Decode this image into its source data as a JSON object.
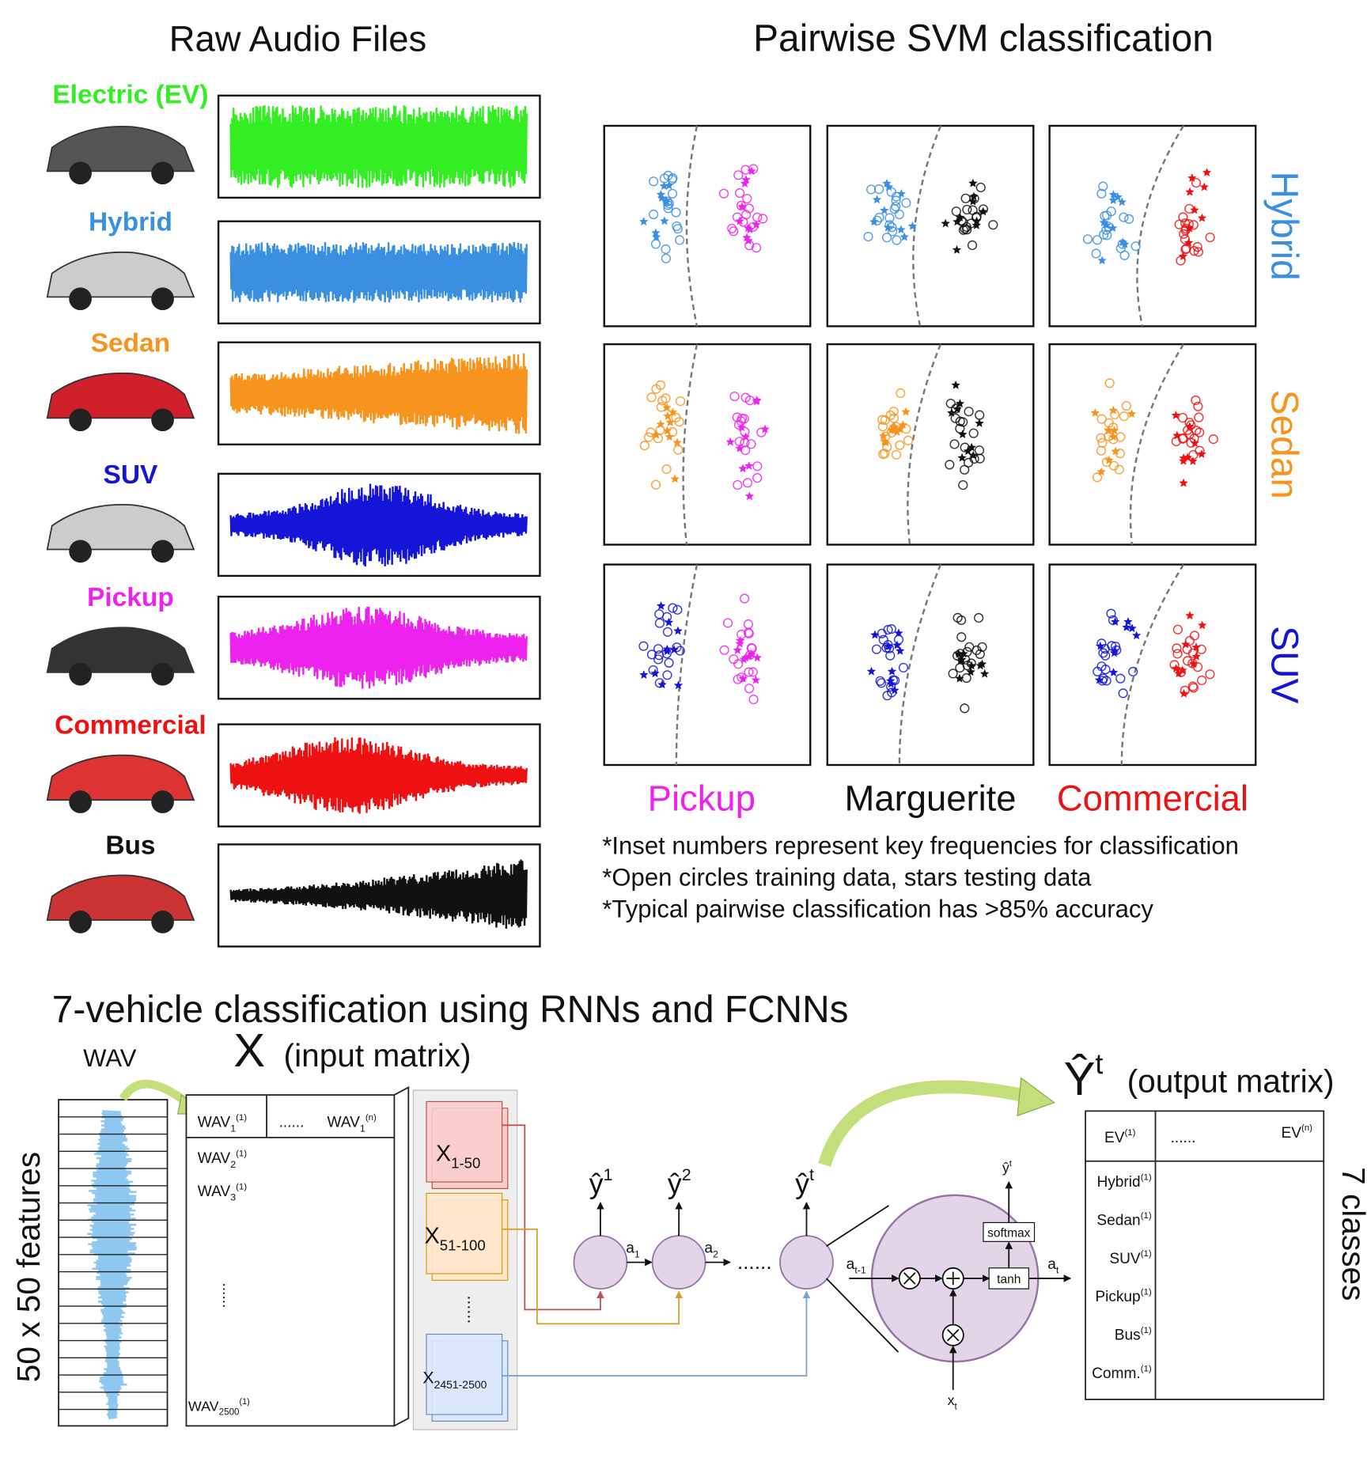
{
  "raw_audio": {
    "title": "Raw Audio Files",
    "vehicles": [
      {
        "label": "Electric (EV)",
        "color": "#33ee22"
      },
      {
        "label": "Hybrid",
        "color": "#3a8fe0"
      },
      {
        "label": "Sedan",
        "color": "#f7941d"
      },
      {
        "label": "SUV",
        "color": "#1515d8"
      },
      {
        "label": "Pickup",
        "color": "#ee22ee"
      },
      {
        "label": "Commercial",
        "color": "#ee1111"
      },
      {
        "label": "Bus",
        "color": "#111111"
      }
    ]
  },
  "svm": {
    "title": "Pairwise SVM classification",
    "rows": [
      {
        "label": "Hybrid",
        "color": "#3a8fe0"
      },
      {
        "label": "Sedan",
        "color": "#f7941d"
      },
      {
        "label": "SUV",
        "color": "#1515d8"
      }
    ],
    "columns": [
      {
        "label": "Pickup",
        "color": "#ee22ee"
      },
      {
        "label": "Marguerite",
        "color": "#111111"
      },
      {
        "label": "Commercial",
        "color": "#ee1111"
      }
    ],
    "notes": [
      "*Inset numbers represent key frequencies for classification",
      "*Open circles training data, stars testing data",
      "*Typical pairwise classification has >85% accuracy"
    ]
  },
  "rnn": {
    "title": "7-vehicle classification using RNNs and FCNNs",
    "wav_label": "WAV",
    "features_label": "50 x 50 features",
    "input": {
      "symbol": "X",
      "caption": "(input matrix)",
      "header": [
        {
          "text": "WAV",
          "sub": "1",
          "sup": "(1)"
        },
        {
          "text": "......"
        },
        {
          "text": "WAV",
          "sub": "1",
          "sup": "(n)"
        }
      ],
      "rows": [
        {
          "text": "WAV",
          "sub": "2",
          "sup": "(1)"
        },
        {
          "text": "WAV",
          "sub": "3",
          "sup": "(1)"
        },
        {
          "text": "......"
        },
        {
          "text": "WAV",
          "sub": "2500",
          "sup": "(1)"
        }
      ]
    },
    "chunks": [
      {
        "text": "X",
        "sub": "1-50"
      },
      {
        "text": "X",
        "sub": "51-100"
      },
      {
        "text": "......"
      },
      {
        "text": "X",
        "sub": "2451-2500"
      }
    ],
    "outputs": [
      {
        "text": "ŷ",
        "sup": "1"
      },
      {
        "text": "ŷ",
        "sup": "2"
      },
      {
        "text": "......"
      },
      {
        "text": "ŷ",
        "sup": "t"
      }
    ],
    "activations": [
      {
        "text": "a",
        "sub": "1"
      },
      {
        "text": "a",
        "sub": "2"
      }
    ],
    "cell": {
      "input": {
        "text": "a",
        "sub": "t-1"
      },
      "output": {
        "text": "a",
        "sub": "t"
      },
      "x": {
        "text": "x",
        "sub": "t"
      },
      "y": {
        "text": "ŷ",
        "sup": "t"
      },
      "softmax": "softmax",
      "tanh": "tanh"
    },
    "output_matrix": {
      "symbol": {
        "text": "Ŷ",
        "sup": "t"
      },
      "caption": "(output matrix)",
      "header": [
        {
          "text": "EV",
          "sup": "(1)"
        },
        {
          "text": "......"
        },
        {
          "text": "EV",
          "sup": "(n)"
        }
      ],
      "rows": [
        {
          "text": "Hybrid",
          "sup": "(1)"
        },
        {
          "text": "Sedan",
          "sup": "(1)"
        },
        {
          "text": "SUV",
          "sup": "(1)"
        },
        {
          "text": "Pickup",
          "sup": "(1)"
        },
        {
          "text": "Bus",
          "sup": "(1)"
        },
        {
          "text": "Comm.",
          "sup": "(1)"
        }
      ],
      "classes_label": "7 classes"
    }
  }
}
